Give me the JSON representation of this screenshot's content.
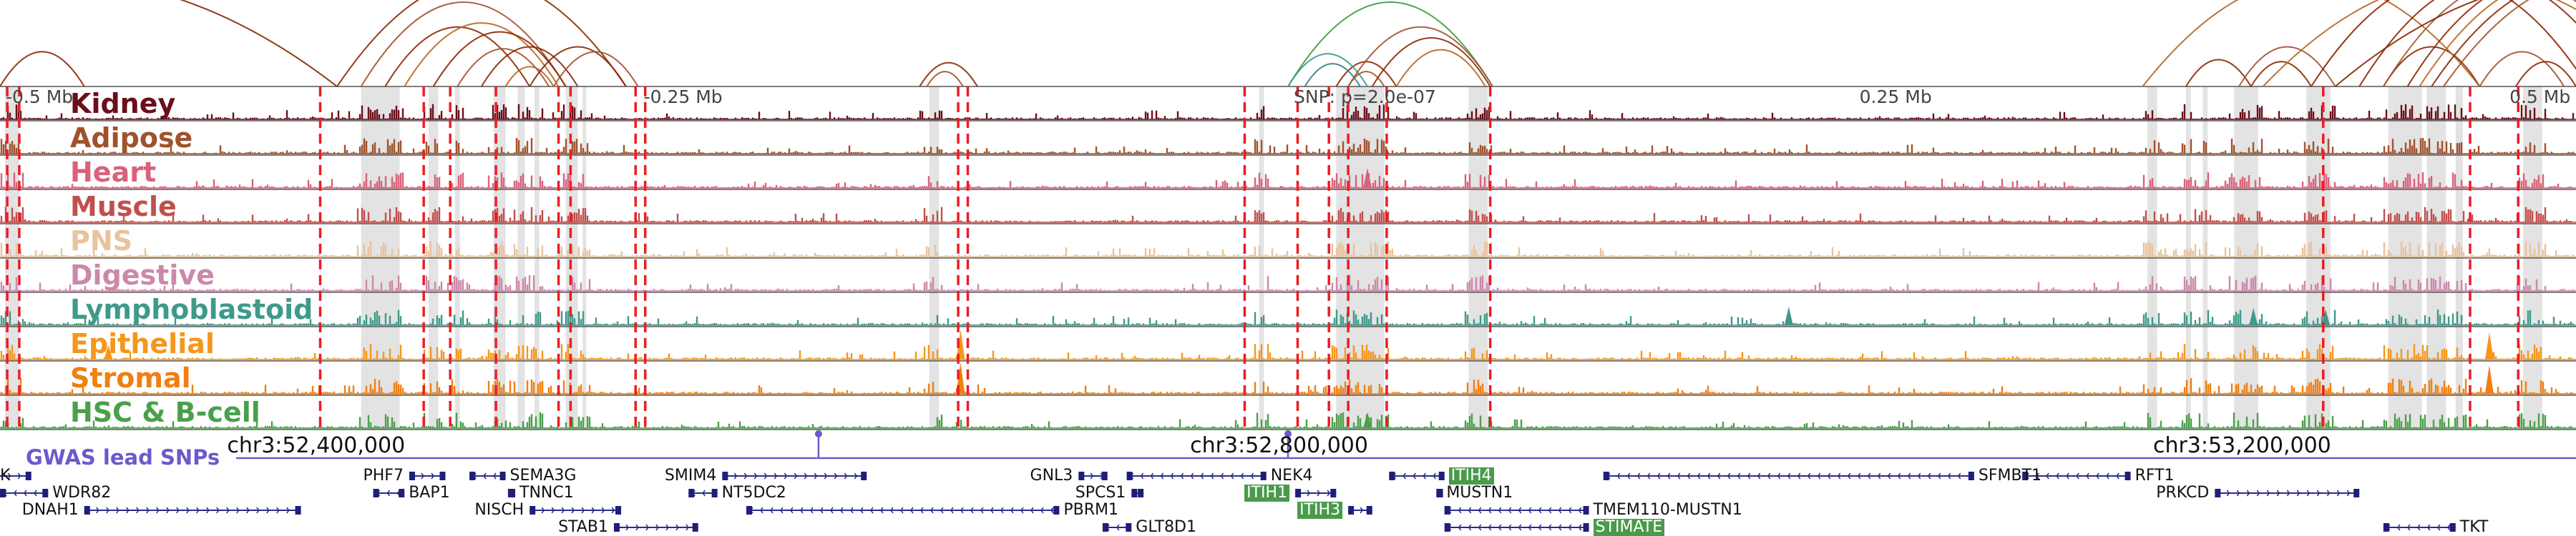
{
  "chart_data": {
    "type": "genome-browser",
    "region": {
      "chromosome": "chr3",
      "start": 52270000,
      "end": 53340000
    },
    "axis_labels": [
      {
        "text": "-0.5 Mb",
        "pos": 52270000
      },
      {
        "text": "-0.25 Mb",
        "pos": 52535000
      },
      {
        "text": "SNP: p=2.0e-07",
        "pos": 52805000
      },
      {
        "text": "0.25 Mb",
        "pos": 53040000
      },
      {
        "text": "0.5 Mb",
        "pos": 53310000
      }
    ],
    "coordinate_labels": [
      {
        "text": "chr3:52,400,000",
        "pos": 52400000
      },
      {
        "text": "chr3:52,800,000",
        "pos": 52800000
      },
      {
        "text": "chr3:53,200,000",
        "pos": 53200000
      }
    ],
    "tracks": [
      {
        "name": "Kidney",
        "color": "#6b0f1a"
      },
      {
        "name": "Adipose",
        "color": "#a0522d"
      },
      {
        "name": "Heart",
        "color": "#d9627a"
      },
      {
        "name": "Muscle",
        "color": "#c0504d"
      },
      {
        "name": "PNS",
        "color": "#e8c39e"
      },
      {
        "name": "Digestive",
        "color": "#cc88aa"
      },
      {
        "name": "Lymphoblastoid",
        "color": "#3e9a8a"
      },
      {
        "name": "Epithelial",
        "color": "#f5961d"
      },
      {
        "name": "Stromal",
        "color": "#f07f0f"
      },
      {
        "name": "HSC & B-cell",
        "color": "#4aa04a"
      }
    ],
    "gwas": {
      "title": "GWAS lead SNPs",
      "color": "#6a5acd",
      "snps": [
        52610000,
        52805000
      ]
    },
    "highlight_regions": [
      [
        52272000,
        52278000
      ],
      [
        52420000,
        52436000
      ],
      [
        52448000,
        52452000
      ],
      [
        52459000,
        52461000
      ],
      [
        52475000,
        52480000
      ],
      [
        52485000,
        52488000
      ],
      [
        52492000,
        52494000
      ],
      [
        52505000,
        52510000
      ],
      [
        52512000,
        52513500
      ],
      [
        52656000,
        52660000
      ],
      [
        52793000,
        52795000
      ],
      [
        52825000,
        52845000
      ],
      [
        52880000,
        52888000
      ],
      [
        53162000,
        53166000
      ],
      [
        53178000,
        53180000
      ],
      [
        53185000,
        53187000
      ],
      [
        53198000,
        53208000
      ],
      [
        53228000,
        53238000
      ],
      [
        53262000,
        53276000
      ],
      [
        53278000,
        53286000
      ],
      [
        53290000,
        53293000
      ],
      [
        53318000,
        53326000
      ]
    ],
    "snp_lines": [
      52273000,
      52278000,
      52403000,
      52446000,
      52457000,
      52476000,
      52502000,
      52507000,
      52534000,
      52538000,
      52668000,
      52672000,
      52787000,
      52809000,
      52822000,
      52830000,
      52846000,
      52889000,
      53235000,
      53296000,
      53316000
    ],
    "loops": [
      {
        "from": 52270000,
        "to": 52305000,
        "color": "#8b2500"
      },
      {
        "from": 52410000,
        "to": 52530000,
        "color": "#8b2500"
      },
      {
        "from": 52420000,
        "to": 52505000,
        "color": "#a0522d"
      },
      {
        "from": 52430000,
        "to": 52490000,
        "color": "#8b2500"
      },
      {
        "from": 52438000,
        "to": 52502000,
        "color": "#b5651d"
      },
      {
        "from": 52450000,
        "to": 52505000,
        "color": "#8b2500"
      },
      {
        "from": 52460000,
        "to": 52498000,
        "color": "#a0522d"
      },
      {
        "from": 52470000,
        "to": 52510000,
        "color": "#8b2500"
      },
      {
        "from": 52480000,
        "to": 52500000,
        "color": "#b5651d"
      },
      {
        "from": 52490000,
        "to": 52530000,
        "color": "#8b2500"
      },
      {
        "from": 52500000,
        "to": 52535000,
        "color": "#a0522d"
      },
      {
        "from": 52652000,
        "to": 52676000,
        "color": "#8b2500"
      },
      {
        "from": 52655000,
        "to": 52670000,
        "color": "#a0522d"
      },
      {
        "from": 52825000,
        "to": 52850000,
        "color": "#8b2500"
      },
      {
        "from": 52830000,
        "to": 52845000,
        "color": "#a0522d"
      },
      {
        "from": 52805000,
        "to": 52890000,
        "color": "#3a9a3a"
      },
      {
        "from": 52805000,
        "to": 52838000,
        "color": "#3a9a8a"
      },
      {
        "from": 52812000,
        "to": 52835000,
        "color": "#3e7f7f"
      },
      {
        "from": 52830000,
        "to": 52890000,
        "color": "#a0522d"
      },
      {
        "from": 52840000,
        "to": 52889000,
        "color": "#8b2500"
      },
      {
        "from": 52850000,
        "to": 52887000,
        "color": "#b5651d"
      },
      {
        "from": 52410000,
        "to": 52180000,
        "color": "#8b2500"
      },
      {
        "from": 52270000,
        "to": 52050000,
        "color": "#a0522d"
      },
      {
        "from": 53178000,
        "to": 53205000,
        "color": "#8b2500"
      },
      {
        "from": 53200000,
        "to": 53240000,
        "color": "#a0522d"
      },
      {
        "from": 53205000,
        "to": 53230000,
        "color": "#8b2500"
      },
      {
        "from": 53260000,
        "to": 53300000,
        "color": "#8b2500"
      },
      {
        "from": 53300000,
        "to": 53335000,
        "color": "#a0522d"
      },
      {
        "from": 53315000,
        "to": 53340000,
        "color": "#8b2500"
      },
      {
        "from": 53160000,
        "to": 53300000,
        "color": "#b5651d"
      },
      {
        "from": 53230000,
        "to": 53345000,
        "color": "#8b2500"
      },
      {
        "from": 53250000,
        "to": 53360000,
        "color": "#8b2500"
      },
      {
        "from": 53260000,
        "to": 53370000,
        "color": "#a0522d"
      },
      {
        "from": 53270000,
        "to": 53380000,
        "color": "#8b2500"
      },
      {
        "from": 53275000,
        "to": 53390000,
        "color": "#b5651d"
      },
      {
        "from": 53280000,
        "to": 53400000,
        "color": "#8b2500"
      },
      {
        "from": 53285000,
        "to": 53410000,
        "color": "#a0522d"
      },
      {
        "from": 53240000,
        "to": 53450000,
        "color": "#8b2500"
      },
      {
        "from": 53210000,
        "to": 53380000,
        "color": "#b5651d"
      }
    ],
    "genes": [
      {
        "name": "K",
        "start": 52260000,
        "end": 52283000,
        "row": 0,
        "strand": "+",
        "label_side": "left"
      },
      {
        "name": "WDR82",
        "start": 52270000,
        "end": 52290000,
        "row": 1,
        "strand": "-",
        "label_side": "right"
      },
      {
        "name": "DNAH1",
        "start": 52305000,
        "end": 52395000,
        "row": 2,
        "strand": "+",
        "label_side": "left"
      },
      {
        "name": "PHF7",
        "start": 52440000,
        "end": 52455000,
        "row": 0,
        "strand": "+",
        "label_side": "left"
      },
      {
        "name": "BAP1",
        "start": 52425000,
        "end": 52438000,
        "row": 1,
        "strand": "-",
        "label_side": "right"
      },
      {
        "name": "SEMA3G",
        "start": 52465000,
        "end": 52480000,
        "row": 0,
        "strand": "-",
        "label_side": "right"
      },
      {
        "name": "TNNC1",
        "start": 52481000,
        "end": 52484000,
        "row": 1,
        "strand": "-",
        "label_side": "right"
      },
      {
        "name": "NISCH",
        "start": 52490000,
        "end": 52528000,
        "row": 2,
        "strand": "+",
        "label_side": "left"
      },
      {
        "name": "STAB1",
        "start": 52525000,
        "end": 52560000,
        "row": 3,
        "strand": "+",
        "label_side": "left"
      },
      {
        "name": "SMIM4",
        "start": 52570000,
        "end": 52630000,
        "row": 0,
        "strand": "+",
        "label_side": "left"
      },
      {
        "name": "NT5DC2",
        "start": 52556000,
        "end": 52568000,
        "row": 1,
        "strand": "-",
        "label_side": "right"
      },
      {
        "name": "GNL3",
        "start": 52718000,
        "end": 52730000,
        "row": 0,
        "strand": "+",
        "label_side": "left"
      },
      {
        "name": "NEK4",
        "start": 52738000,
        "end": 52796000,
        "row": 0,
        "strand": "-",
        "label_side": "right"
      },
      {
        "name": "SPCS1",
        "start": 52740000,
        "end": 52745000,
        "row": 1,
        "strand": "+",
        "label_side": "left"
      },
      {
        "name": "ITIH1",
        "start": 52808000,
        "end": 52825000,
        "row": 1,
        "strand": "+",
        "label_side": "left",
        "highlight": true
      },
      {
        "name": "PBRM1",
        "start": 52580000,
        "end": 52710000,
        "row": 2,
        "strand": "-",
        "label_side": "right"
      },
      {
        "name": "ITIH3",
        "start": 52830000,
        "end": 52840000,
        "row": 2,
        "strand": "+",
        "label_side": "left",
        "highlight": true
      },
      {
        "name": "GLT8D1",
        "start": 52728000,
        "end": 52740000,
        "row": 3,
        "strand": "-",
        "label_side": "right"
      },
      {
        "name": "ITIH4",
        "start": 52847000,
        "end": 52870000,
        "row": 0,
        "strand": "-",
        "label_side": "right",
        "highlight": true
      },
      {
        "name": "MUSTN1",
        "start": 52867000,
        "end": 52869000,
        "row": 1,
        "strand": "-",
        "label_side": "right"
      },
      {
        "name": "TMEM110-MUSTN1",
        "start": 52870000,
        "end": 52930000,
        "row": 2,
        "strand": "-",
        "label_side": "right"
      },
      {
        "name": "STIMATE",
        "start": 52870000,
        "end": 52930000,
        "row": 3,
        "strand": "-",
        "label_side": "right",
        "highlight": true
      },
      {
        "name": "SFMBT1",
        "start": 52936000,
        "end": 53090000,
        "row": 0,
        "strand": "-",
        "label_side": "right"
      },
      {
        "name": "RFT1",
        "start": 53110000,
        "end": 53155000,
        "row": 0,
        "strand": "-",
        "label_side": "right"
      },
      {
        "name": "PRKCD",
        "start": 53190000,
        "end": 53250000,
        "row": 1,
        "strand": "+",
        "label_side": "left"
      },
      {
        "name": "TKT",
        "start": 53260000,
        "end": 53290000,
        "row": 3,
        "strand": "-",
        "label_side": "right"
      }
    ]
  }
}
